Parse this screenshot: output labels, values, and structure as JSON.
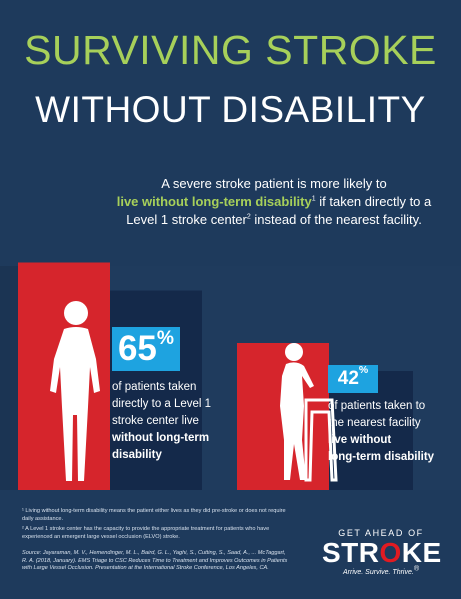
{
  "title_line1": "SURVIVING STROKE",
  "title_line2": "WITHOUT DISABILITY",
  "intro": {
    "line1": "A severe stroke patient is more likely to",
    "highlight": "live without long-term disability",
    "sup1": "1",
    "line2_rest": " if taken directly to a",
    "line3_pre": "Level 1 stroke center",
    "sup2": "2",
    "line3_post": " instead of the nearest facility."
  },
  "colors": {
    "background": "#1e3a5c",
    "accent_green": "#a7d05a",
    "bar_red": "#d6252c",
    "stat_blue": "#1ea3e0"
  },
  "chart_data": {
    "type": "bar",
    "categories": [
      "Level 1 stroke center",
      "Nearest facility"
    ],
    "values": [
      65,
      42
    ],
    "unit": "%"
  },
  "stat_a": {
    "value": "65",
    "pct": "%",
    "text_line1": "of patients taken",
    "text_line2": "directly to a Level 1",
    "text_line3": "stroke center live",
    "text_bold1": "without long-term",
    "text_bold2": "disability"
  },
  "stat_b": {
    "value": "42",
    "pct": "%",
    "text_line1": "of patients taken to",
    "text_line2": "the nearest facility",
    "text_bold1": "live without",
    "text_bold2": "long-term disability"
  },
  "footnotes": {
    "f1": "¹ Living without long-term disability means the patient either lives as they did pre-stroke or does not require daily assistance.",
    "f2": "² A Level 1 stroke center has the capacity to provide the appropriate treatment for patients who have experienced an emergent large vessel occlusion (ELVO) stroke.",
    "source": "Source: Jayaraman, M. V., Hemendinger, M. L., Baird, G. L., Yaghi, S., Cutting, S., Saad, A., ... McTaggart, R. A. (2018, January). EMS Triage to CSC Reduces Time to Treatment and Improves Outcomes in Patients with Large Vessel Occlusion. Presentation at the International Stroke Conference, Los Angeles, CA."
  },
  "brand": {
    "line1": "GET AHEAD OF",
    "line2_pre": "STR",
    "line2_o": "O",
    "line2_post": "KE",
    "tagline": "Arrive. Survive. Thrive.",
    "tm": "®"
  }
}
